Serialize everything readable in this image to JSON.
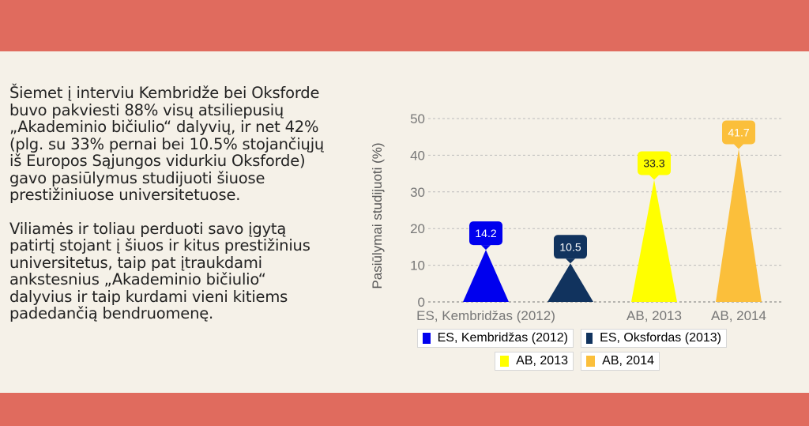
{
  "text": {
    "paragraph1": "Šiemet į interviu Kembridže bei Oksforde buvo pakviesti 88% visų atsiliepusių „Akademinio bičiulio“ dalyvių, ir net 42% (plg. su 33% pernai bei 10.5% stojančiųjų iš Europos Sąjungos vidurkiu Oksforde) gavo pasiūlymus studijuoti šiuose prestižiniuose universitetuose.",
    "paragraph2": "Viliamės ir toliau perduoti savo įgytą patirtį stojant į šiuos ir kitus prestižinius universitetus, taip pat įtraukdami ankstesnius „Akademinio bičiulio“ dalyvius ir taip kurdami vieni kitiems padedančią bendruomenę."
  },
  "colors": {
    "band": "#e06b5e",
    "background": "#f5f1e8"
  },
  "chart_data": {
    "type": "bar",
    "bar_shape": "triangle",
    "ylabel": "Pasiūlymai studijuoti (%)",
    "xlabel": "",
    "ylim": [
      0,
      50
    ],
    "yticks": [
      0,
      10,
      20,
      30,
      40,
      50
    ],
    "grid": true,
    "legend_position": "bottom",
    "x_tick_labels": [
      "ES, Kembridžas (2012)",
      "",
      "AB, 2013",
      "AB, 2014"
    ],
    "series": [
      {
        "name": "ES, Kembridžas (2012)",
        "value": 14.2,
        "label": "14.2",
        "color": "#0000ee",
        "label_color": "#ffffff"
      },
      {
        "name": "ES, Oksfordas (2013)",
        "value": 10.5,
        "label": "10.5",
        "color": "#11335e",
        "label_color": "#ffffff"
      },
      {
        "name": "AB, 2013",
        "value": 33.3,
        "label": "33.3",
        "color": "#ffff00",
        "label_color": "#222222"
      },
      {
        "name": "AB, 2014",
        "value": 41.7,
        "label": "41.7",
        "color": "#fbbf3b",
        "label_color": "#ffffff"
      }
    ]
  }
}
